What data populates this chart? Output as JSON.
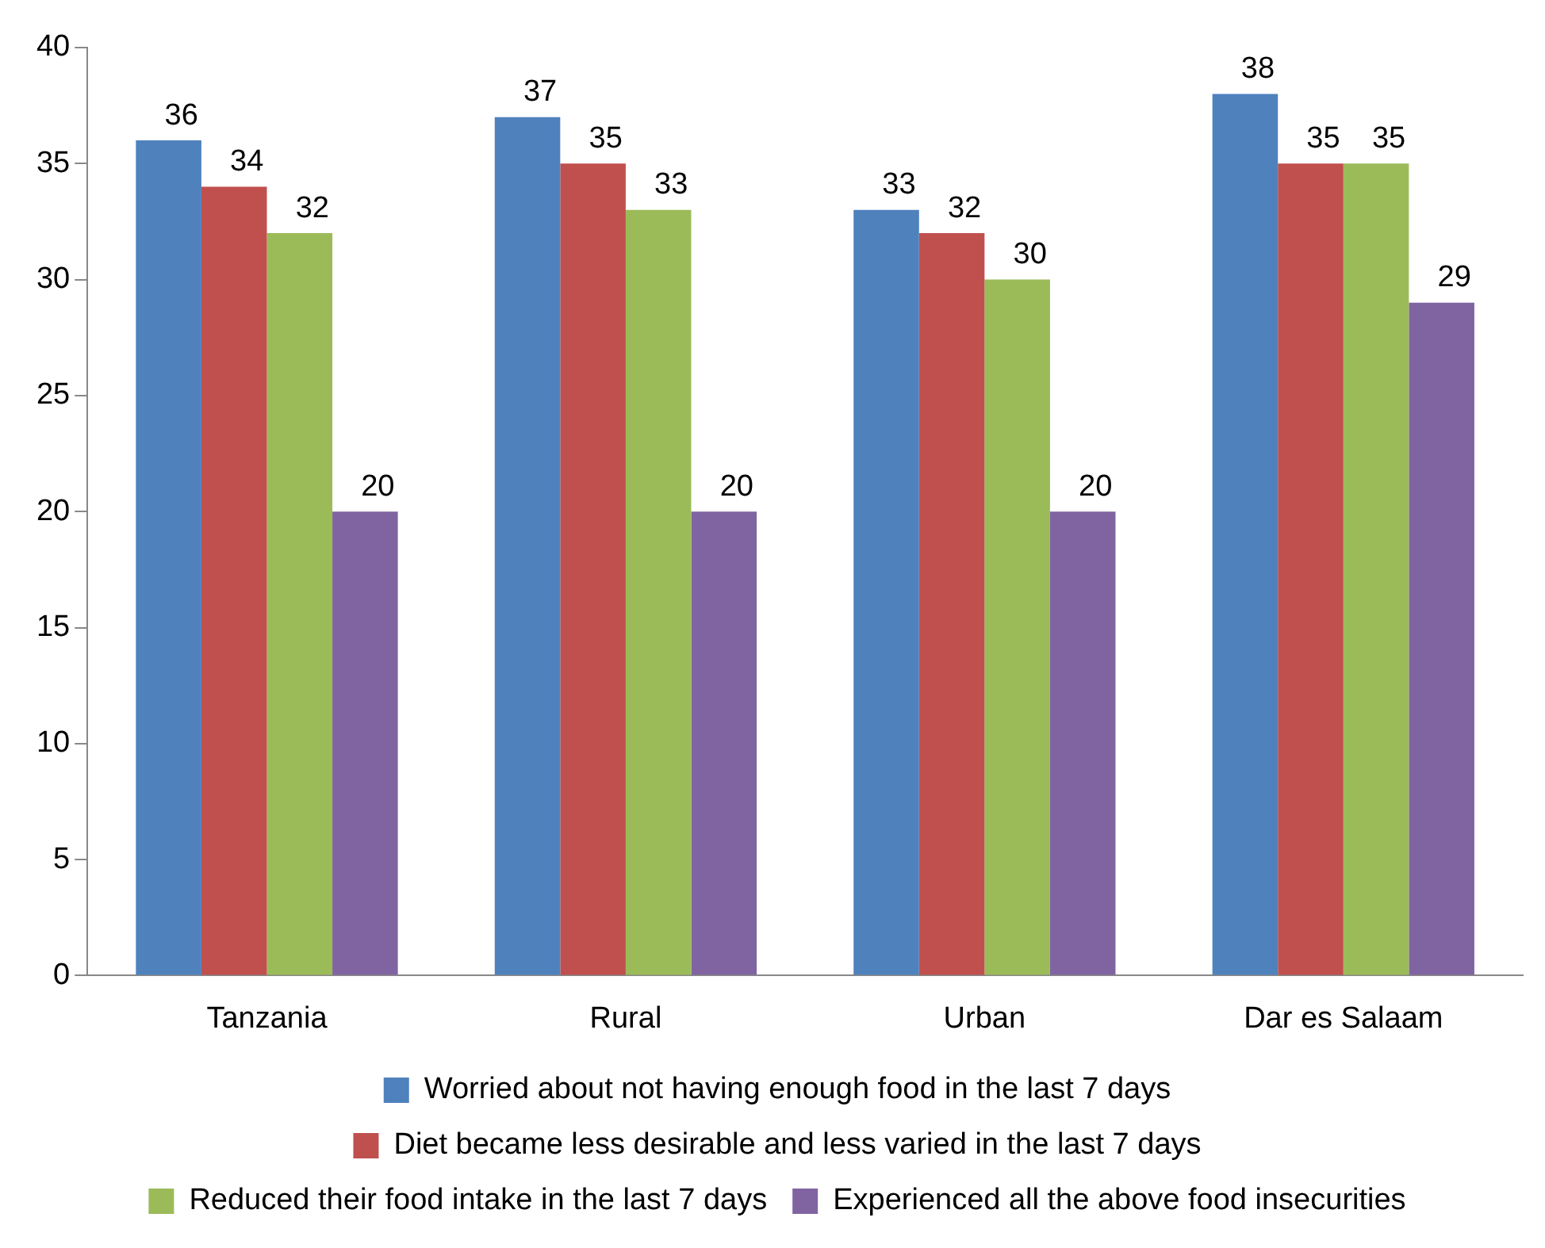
{
  "chart_data": {
    "type": "bar",
    "categories": [
      "Tanzania",
      "Rural",
      "Urban",
      "Dar es Salaam"
    ],
    "series": [
      {
        "name": "Worried about not having enough food in the last 7 days",
        "color": "#4f81bd",
        "values": [
          36,
          37,
          33,
          38
        ]
      },
      {
        "name": "Diet became less desirable and less varied in the last 7 days",
        "color": "#c0504d",
        "values": [
          34,
          35,
          32,
          35
        ]
      },
      {
        "name": "Reduced their food intake in the last 7 days",
        "color": "#9bbb59",
        "values": [
          32,
          33,
          30,
          35
        ]
      },
      {
        "name": "Experienced all the above food insecurities",
        "color": "#8064a2",
        "values": [
          20,
          20,
          20,
          29
        ]
      }
    ],
    "ylim": [
      0,
      40
    ],
    "yticks": [
      0,
      5,
      10,
      15,
      20,
      25,
      30,
      35,
      40
    ],
    "grid": false,
    "legend": "bottom",
    "data_labels": true
  }
}
